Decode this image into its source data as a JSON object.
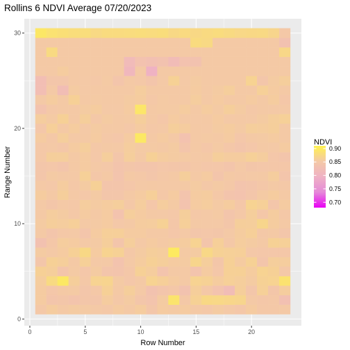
{
  "chart_data": {
    "type": "heatmap",
    "title": "Rollins 6 NDVI Average 07/20/2023",
    "xlabel": "Row Number",
    "ylabel": "Range Number",
    "xlim": [
      -0.5,
      24.5
    ],
    "ylim": [
      -0.7,
      31.5
    ],
    "x_ticks": [
      0,
      5,
      10,
      15,
      20
    ],
    "y_ticks": [
      0,
      10,
      20,
      30
    ],
    "grid": true,
    "legend": {
      "title": "NDVI",
      "position": "right",
      "ticks": [
        0.9,
        0.85,
        0.8,
        0.75,
        0.7
      ],
      "tick_labels": [
        "0.90",
        "0.85",
        "0.80",
        "0.75",
        "0.70"
      ],
      "range": [
        0.68,
        0.91
      ],
      "colors": [
        "#e900f5",
        "#e58ad8",
        "#efb2c4",
        "#f4c9a6",
        "#fff24f"
      ]
    },
    "rows": [
      1,
      2,
      3,
      4,
      5,
      6,
      7,
      8,
      9,
      10,
      11,
      12,
      13,
      14,
      15,
      16,
      17,
      18,
      19,
      20,
      21,
      22,
      23
    ],
    "ranges": [
      1,
      2,
      3,
      4,
      5,
      6,
      7,
      8,
      9,
      10,
      11,
      12,
      13,
      14,
      15,
      16,
      17,
      18,
      19,
      20,
      21,
      22,
      23,
      24,
      25,
      26,
      27,
      28,
      29,
      30
    ],
    "values": [
      [
        0.851,
        0.857,
        0.853,
        0.855,
        0.854,
        0.852,
        0.851,
        0.856,
        0.853,
        0.857,
        0.846,
        0.856,
        0.854,
        0.856,
        0.853,
        0.851,
        0.855,
        0.852,
        0.848,
        0.856,
        0.851,
        0.85,
        0.852
      ],
      [
        0.856,
        0.843,
        0.846,
        0.841,
        0.846,
        0.844,
        0.857,
        0.851,
        0.855,
        0.844,
        0.839,
        0.855,
        0.89,
        0.851,
        0.864,
        0.874,
        0.873,
        0.871,
        0.869,
        0.852,
        0.848,
        0.85,
        0.829
      ],
      [
        0.856,
        0.847,
        0.853,
        0.854,
        0.845,
        0.851,
        0.863,
        0.853,
        0.86,
        0.852,
        0.835,
        0.842,
        0.848,
        0.835,
        0.86,
        0.85,
        0.838,
        0.822,
        0.86,
        0.845,
        0.862,
        0.846,
        0.858
      ],
      [
        0.858,
        0.876,
        0.896,
        0.86,
        0.85,
        0.866,
        0.868,
        0.854,
        0.847,
        0.853,
        0.866,
        0.861,
        0.856,
        0.853,
        0.866,
        0.864,
        0.857,
        0.862,
        0.859,
        0.855,
        0.864,
        0.866,
        0.888
      ],
      [
        0.863,
        0.86,
        0.843,
        0.854,
        0.847,
        0.855,
        0.842,
        0.841,
        0.848,
        0.863,
        0.858,
        0.84,
        0.853,
        0.853,
        0.84,
        0.856,
        0.847,
        0.863,
        0.863,
        0.857,
        0.866,
        0.863,
        0.849
      ],
      [
        0.844,
        0.863,
        0.86,
        0.853,
        0.862,
        0.852,
        0.852,
        0.837,
        0.852,
        0.857,
        0.863,
        0.86,
        0.856,
        0.855,
        0.87,
        0.859,
        0.846,
        0.863,
        0.856,
        0.864,
        0.842,
        0.859,
        0.858
      ],
      [
        0.855,
        0.852,
        0.856,
        0.863,
        0.874,
        0.856,
        0.867,
        0.864,
        0.85,
        0.855,
        0.86,
        0.858,
        0.899,
        0.854,
        0.855,
        0.873,
        0.864,
        0.862,
        0.861,
        0.849,
        0.847,
        0.847,
        0.848
      ],
      [
        0.833,
        0.848,
        0.858,
        0.856,
        0.852,
        0.854,
        0.86,
        0.842,
        0.859,
        0.852,
        0.856,
        0.853,
        0.855,
        0.857,
        0.866,
        0.842,
        0.861,
        0.851,
        0.858,
        0.855,
        0.853,
        0.864,
        0.862
      ],
      [
        0.853,
        0.842,
        0.85,
        0.852,
        0.842,
        0.856,
        0.861,
        0.861,
        0.856,
        0.856,
        0.853,
        0.853,
        0.847,
        0.852,
        0.844,
        0.847,
        0.846,
        0.852,
        0.857,
        0.861,
        0.851,
        0.853,
        0.844
      ],
      [
        0.855,
        0.86,
        0.858,
        0.861,
        0.853,
        0.854,
        0.856,
        0.849,
        0.853,
        0.857,
        0.858,
        0.864,
        0.848,
        0.861,
        0.853,
        0.852,
        0.852,
        0.846,
        0.86,
        0.859,
        0.87,
        0.857,
        0.853
      ],
      [
        0.853,
        0.858,
        0.855,
        0.85,
        0.856,
        0.853,
        0.856,
        0.837,
        0.859,
        0.856,
        0.853,
        0.852,
        0.849,
        0.86,
        0.851,
        0.852,
        0.854,
        0.842,
        0.851,
        0.859,
        0.848,
        0.857,
        0.85
      ],
      [
        0.852,
        0.846,
        0.852,
        0.85,
        0.858,
        0.855,
        0.857,
        0.859,
        0.85,
        0.858,
        0.847,
        0.858,
        0.854,
        0.838,
        0.856,
        0.858,
        0.854,
        0.857,
        0.848,
        0.866,
        0.862,
        0.844,
        0.856
      ],
      [
        0.857,
        0.853,
        0.86,
        0.852,
        0.849,
        0.854,
        0.844,
        0.845,
        0.853,
        0.856,
        0.861,
        0.85,
        0.856,
        0.839,
        0.856,
        0.857,
        0.85,
        0.841,
        0.838,
        0.845,
        0.854,
        0.857,
        0.853
      ],
      [
        0.852,
        0.849,
        0.857,
        0.851,
        0.855,
        0.863,
        0.843,
        0.843,
        0.847,
        0.852,
        0.853,
        0.852,
        0.852,
        0.853,
        0.855,
        0.85,
        0.854,
        0.851,
        0.84,
        0.843,
        0.848,
        0.853,
        0.85
      ],
      [
        0.845,
        0.854,
        0.852,
        0.852,
        0.862,
        0.848,
        0.853,
        0.839,
        0.853,
        0.851,
        0.845,
        0.85,
        0.853,
        0.86,
        0.853,
        0.856,
        0.843,
        0.853,
        0.85,
        0.852,
        0.853,
        0.858,
        0.843
      ],
      [
        0.844,
        0.847,
        0.842,
        0.853,
        0.856,
        0.852,
        0.849,
        0.841,
        0.846,
        0.843,
        0.842,
        0.847,
        0.846,
        0.846,
        0.85,
        0.847,
        0.847,
        0.843,
        0.852,
        0.846,
        0.847,
        0.848,
        0.848
      ],
      [
        0.851,
        0.86,
        0.859,
        0.853,
        0.856,
        0.849,
        0.859,
        0.844,
        0.859,
        0.853,
        0.863,
        0.857,
        0.855,
        0.854,
        0.852,
        0.853,
        0.86,
        0.857,
        0.857,
        0.862,
        0.858,
        0.847,
        0.842
      ],
      [
        0.851,
        0.852,
        0.848,
        0.856,
        0.859,
        0.85,
        0.853,
        0.852,
        0.858,
        0.854,
        0.854,
        0.853,
        0.855,
        0.842,
        0.853,
        0.848,
        0.854,
        0.848,
        0.842,
        0.847,
        0.853,
        0.852,
        0.856
      ],
      [
        0.856,
        0.851,
        0.859,
        0.852,
        0.853,
        0.856,
        0.851,
        0.847,
        0.856,
        0.896,
        0.853,
        0.856,
        0.852,
        0.836,
        0.853,
        0.854,
        0.853,
        0.856,
        0.847,
        0.853,
        0.854,
        0.856,
        0.853
      ],
      [
        0.847,
        0.861,
        0.853,
        0.857,
        0.852,
        0.855,
        0.853,
        0.853,
        0.849,
        0.856,
        0.85,
        0.852,
        0.86,
        0.857,
        0.853,
        0.852,
        0.855,
        0.857,
        0.854,
        0.859,
        0.858,
        0.86,
        0.853
      ],
      [
        0.858,
        0.854,
        0.863,
        0.853,
        0.86,
        0.85,
        0.855,
        0.853,
        0.854,
        0.86,
        0.853,
        0.848,
        0.856,
        0.853,
        0.852,
        0.853,
        0.856,
        0.852,
        0.853,
        0.852,
        0.855,
        0.859,
        0.862
      ],
      [
        0.838,
        0.851,
        0.853,
        0.853,
        0.855,
        0.857,
        0.852,
        0.852,
        0.856,
        0.893,
        0.853,
        0.854,
        0.854,
        0.857,
        0.853,
        0.857,
        0.854,
        0.86,
        0.855,
        0.85,
        0.853,
        0.852,
        0.852
      ],
      [
        0.852,
        0.857,
        0.853,
        0.863,
        0.853,
        0.854,
        0.853,
        0.853,
        0.855,
        0.857,
        0.851,
        0.854,
        0.853,
        0.853,
        0.858,
        0.853,
        0.856,
        0.853,
        0.853,
        0.856,
        0.853,
        0.857,
        0.848
      ],
      [
        0.826,
        0.852,
        0.823,
        0.855,
        0.852,
        0.853,
        0.853,
        0.853,
        0.853,
        0.858,
        0.853,
        0.853,
        0.853,
        0.853,
        0.856,
        0.853,
        0.855,
        0.859,
        0.853,
        0.853,
        0.862,
        0.856,
        0.853
      ],
      [
        0.826,
        0.845,
        0.845,
        0.853,
        0.852,
        0.85,
        0.854,
        0.842,
        0.853,
        0.851,
        0.843,
        0.852,
        0.864,
        0.852,
        0.855,
        0.853,
        0.853,
        0.853,
        0.853,
        0.866,
        0.845,
        0.855,
        0.859
      ],
      [
        0.852,
        0.853,
        0.857,
        0.853,
        0.853,
        0.853,
        0.853,
        0.853,
        0.808,
        0.853,
        0.796,
        0.853,
        0.853,
        0.853,
        0.853,
        0.853,
        0.853,
        0.853,
        0.853,
        0.853,
        0.853,
        0.853,
        0.853
      ],
      [
        0.853,
        0.853,
        0.853,
        0.853,
        0.853,
        0.853,
        0.853,
        0.853,
        0.817,
        0.836,
        0.83,
        0.835,
        0.82,
        0.836,
        0.835,
        0.853,
        0.853,
        0.853,
        0.853,
        0.853,
        0.853,
        0.853,
        0.853
      ],
      [
        0.853,
        0.876,
        0.853,
        0.853,
        0.853,
        0.853,
        0.853,
        0.853,
        0.853,
        0.853,
        0.853,
        0.853,
        0.853,
        0.853,
        0.853,
        0.853,
        0.853,
        0.853,
        0.853,
        0.853,
        0.853,
        0.853,
        0.872
      ],
      [
        0.853,
        0.853,
        0.853,
        0.853,
        0.853,
        0.853,
        0.853,
        0.853,
        0.853,
        0.853,
        0.853,
        0.853,
        0.853,
        0.853,
        0.878,
        0.875,
        0.853,
        0.853,
        0.853,
        0.853,
        0.853,
        0.853,
        0.833
      ],
      [
        0.895,
        0.887,
        0.884,
        0.881,
        0.881,
        0.875,
        0.878,
        0.878,
        0.879,
        0.88,
        0.879,
        0.881,
        0.874,
        0.877,
        0.874,
        0.877,
        0.879,
        0.876,
        0.873,
        0.874,
        0.875,
        0.87,
        0.851
      ]
    ]
  }
}
